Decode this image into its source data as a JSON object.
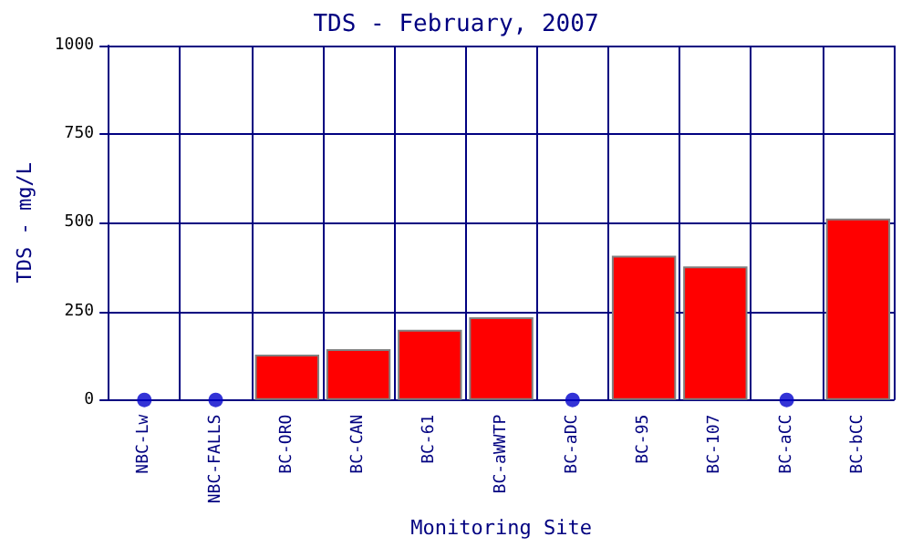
{
  "chart_data": {
    "type": "bar",
    "title": "TDS - February, 2007",
    "xlabel": "Monitoring Site",
    "ylabel": "TDS - mg/L",
    "categories": [
      "NBC-Lw",
      "NBC-FALLS",
      "BC-ORO",
      "BC-CAN",
      "BC-61",
      "BC-aWWTP",
      "BC-aDC",
      "BC-95",
      "BC-107",
      "BC-aCC",
      "BC-bCC"
    ],
    "series": [
      {
        "color": "#ff0000",
        "values": [
          null,
          null,
          128,
          143,
          198,
          233,
          null,
          407,
          377,
          null,
          512
        ]
      },
      {
        "type": "scatter",
        "color": "#0000cc",
        "marker": "circle",
        "x": [
          "NBC-Lw",
          "NBC-FALLS",
          "BC-aDC",
          "BC-aCC"
        ],
        "values": [
          0,
          0,
          0,
          0
        ]
      }
    ],
    "ylim": [
      0,
      1000
    ],
    "yticks": [
      0,
      250,
      500,
      750,
      1000
    ],
    "grid": true
  }
}
